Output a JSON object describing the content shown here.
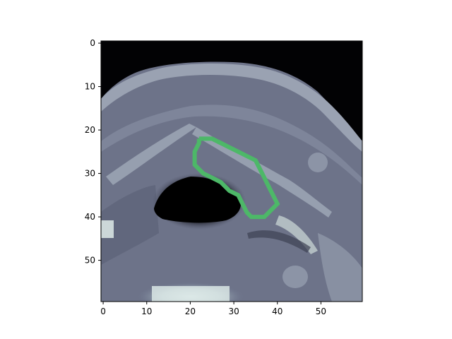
{
  "axes": {
    "x_ticks": [
      "0",
      "10",
      "20",
      "30",
      "40",
      "50"
    ],
    "y_ticks": [
      "0",
      "10",
      "20",
      "30",
      "40",
      "50"
    ],
    "x_range": [
      -0.5,
      59.5
    ],
    "y_range": [
      -0.5,
      59.5
    ],
    "y_inverted": true
  },
  "image": {
    "grid_size": [
      60,
      60
    ],
    "colormap": "bone"
  },
  "contour": {
    "color": "#4db868",
    "points": [
      [
        22,
        22
      ],
      [
        25,
        22
      ],
      [
        27,
        23
      ],
      [
        29,
        24
      ],
      [
        31,
        25
      ],
      [
        33,
        26
      ],
      [
        35,
        27
      ],
      [
        36,
        29
      ],
      [
        37,
        31
      ],
      [
        38,
        33
      ],
      [
        39,
        35
      ],
      [
        40,
        37
      ],
      [
        39,
        38
      ],
      [
        37,
        40
      ],
      [
        34,
        40
      ],
      [
        33,
        39
      ],
      [
        32,
        37
      ],
      [
        31,
        35
      ],
      [
        29,
        34
      ],
      [
        27,
        32
      ],
      [
        25,
        31
      ],
      [
        23,
        30
      ],
      [
        21,
        28
      ],
      [
        21,
        25
      ],
      [
        22,
        23
      ]
    ]
  }
}
